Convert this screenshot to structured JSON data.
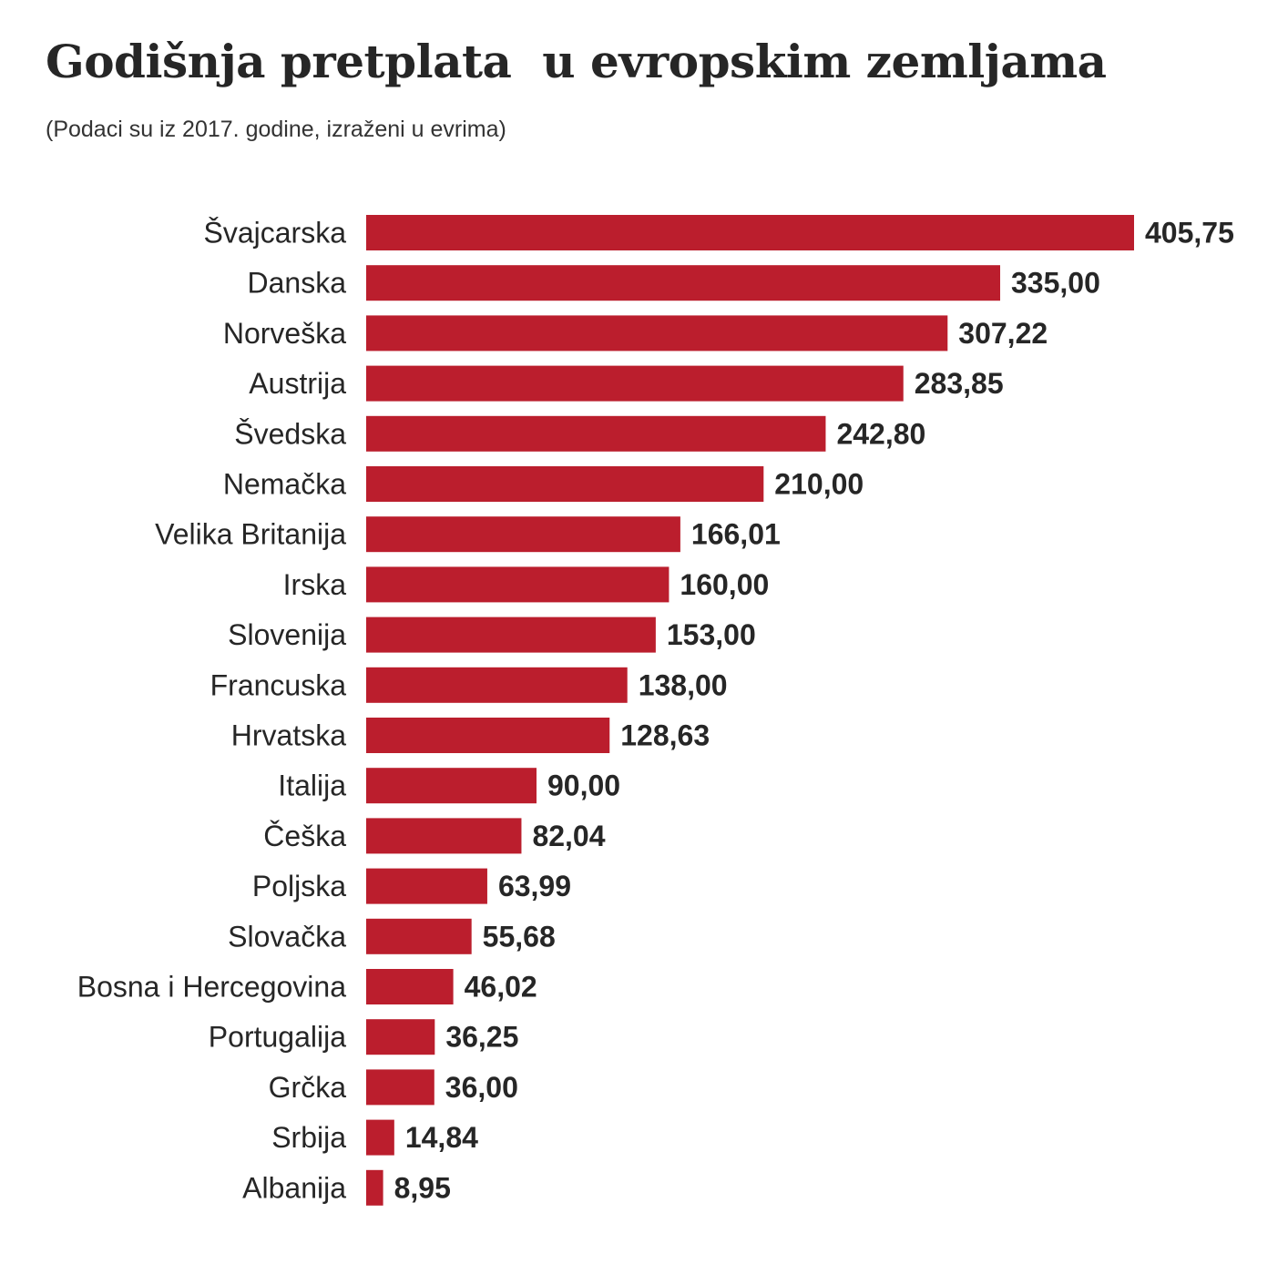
{
  "chart_data": {
    "type": "bar",
    "orientation": "horizontal",
    "title": "Godišnja pretplata  u evropskim zemljama",
    "subtitle": "(Podaci su iz 2017. godine, izraženi u evrima)",
    "bar_color": "#bb1e2d",
    "categories": [
      "Švajcarska",
      "Danska",
      "Norveška",
      "Austrija",
      "Švedska",
      "Nemačka",
      "Velika Britanija",
      "Irska",
      "Slovenija",
      "Francuska",
      "Hrvatska",
      "Italija",
      "Češka",
      "Poljska",
      "Slovačka",
      "Bosna i Hercegovina",
      "Portugalija",
      "Grčka",
      "Srbija",
      "Albanija"
    ],
    "values": [
      405.75,
      335.0,
      307.22,
      283.85,
      242.8,
      210.0,
      166.01,
      160.0,
      153.0,
      138.0,
      128.63,
      90.0,
      82.04,
      63.99,
      55.68,
      46.02,
      36.25,
      36.0,
      14.84,
      8.95
    ],
    "value_labels": [
      "405,75",
      "335,00",
      "307,22",
      "283,85",
      "242,80",
      "210,00",
      "166,01",
      "160,00",
      "153,00",
      "138,00",
      "128,63",
      "90,00",
      "82,04",
      "63,99",
      "55,68",
      "46,02",
      "36,25",
      "36,00",
      "14,84",
      "8,95"
    ],
    "xlim": [
      0,
      405.75
    ],
    "grid": false,
    "legend": "none"
  }
}
